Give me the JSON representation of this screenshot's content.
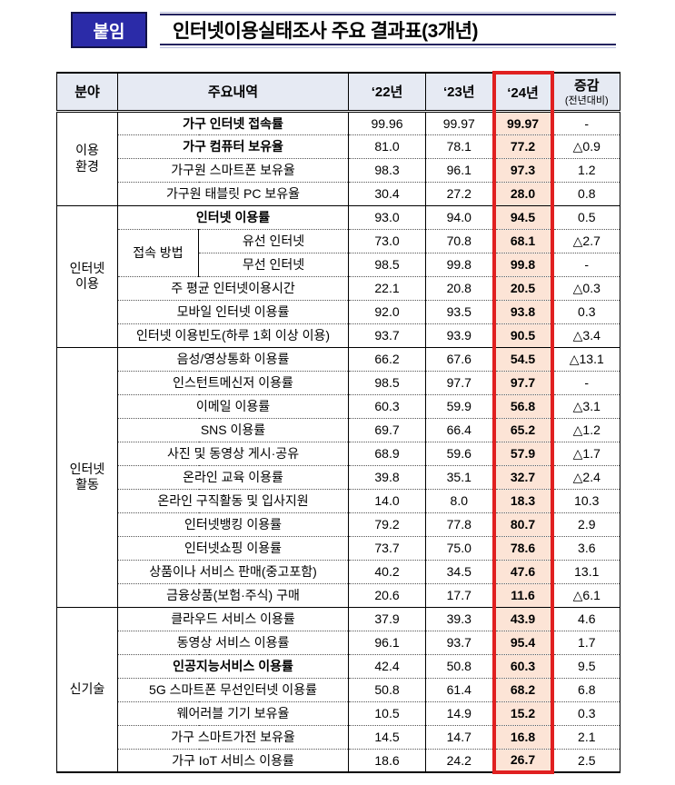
{
  "header": {
    "badge": "붙임",
    "title": "인터넷이용실태조사 주요 결과표(3개년)"
  },
  "table": {
    "columns": [
      "분야",
      "주요내역",
      "‘22년",
      "‘23년",
      "‘24년",
      "증감"
    ],
    "change_note": "(전년대비)",
    "accent_colors": {
      "highlight_border": "#e02020",
      "highlight_fill": "#fce4d6",
      "header_fill": "#e6eaf3",
      "badge_fill": "#2b2ba8"
    },
    "groups": [
      {
        "category": "이용\n환경",
        "rows": [
          {
            "label": "가구 인터넷 접속률",
            "bold": true,
            "v22": "99.96",
            "v23": "99.97",
            "v24": "99.97",
            "chg": "-"
          },
          {
            "label": "가구 컴퓨터 보유율",
            "bold": true,
            "v22": "81.0",
            "v23": "78.1",
            "v24": "77.2",
            "chg": "△0.9"
          },
          {
            "label": "가구원 스마트폰 보유율",
            "v22": "98.3",
            "v23": "96.1",
            "v24": "97.3",
            "chg": "1.2"
          },
          {
            "label": "가구원 태블릿 PC 보유율",
            "v22": "30.4",
            "v23": "27.2",
            "v24": "28.0",
            "chg": "0.8"
          }
        ]
      },
      {
        "category": "인터넷\n이용",
        "rows": [
          {
            "label": "인터넷 이용률",
            "bold": true,
            "v22": "93.0",
            "v23": "94.0",
            "v24": "94.5",
            "chg": "0.5"
          },
          {
            "label": "유선 인터넷",
            "subgroup": "접속 방법",
            "subrow": 0,
            "v22": "73.0",
            "v23": "70.8",
            "v24": "68.1",
            "chg": "△2.7"
          },
          {
            "label": "무선 인터넷",
            "subgroup": "접속 방법",
            "subrow": 1,
            "v22": "98.5",
            "v23": "99.8",
            "v24": "99.8",
            "chg": "-"
          },
          {
            "label": "주 평균 인터넷이용시간",
            "v22": "22.1",
            "v23": "20.8",
            "v24": "20.5",
            "chg": "△0.3"
          },
          {
            "label": "모바일 인터넷 이용률",
            "v22": "92.0",
            "v23": "93.5",
            "v24": "93.8",
            "chg": "0.3"
          },
          {
            "label": "인터넷 이용빈도(하루 1회 이상 이용)",
            "v22": "93.7",
            "v23": "93.9",
            "v24": "90.5",
            "chg": "△3.4"
          }
        ]
      },
      {
        "category": "인터넷\n활동",
        "rows": [
          {
            "label": "음성/영상통화 이용률",
            "v22": "66.2",
            "v23": "67.6",
            "v24": "54.5",
            "chg": "△13.1"
          },
          {
            "label": "인스턴트메신저 이용률",
            "v22": "98.5",
            "v23": "97.7",
            "v24": "97.7",
            "chg": "-"
          },
          {
            "label": "이메일 이용률",
            "v22": "60.3",
            "v23": "59.9",
            "v24": "56.8",
            "chg": "△3.1"
          },
          {
            "label": "SNS 이용률",
            "v22": "69.7",
            "v23": "66.4",
            "v24": "65.2",
            "chg": "△1.2"
          },
          {
            "label": "사진 및 동영상 게시·공유",
            "v22": "68.9",
            "v23": "59.6",
            "v24": "57.9",
            "chg": "△1.7"
          },
          {
            "label": "온라인 교육 이용률",
            "v22": "39.8",
            "v23": "35.1",
            "v24": "32.7",
            "chg": "△2.4"
          },
          {
            "label": "온라인 구직활동 및 입사지원",
            "v22": "14.0",
            "v23": "8.0",
            "v24": "18.3",
            "chg": "10.3"
          },
          {
            "label": "인터넷뱅킹 이용률",
            "v22": "79.2",
            "v23": "77.8",
            "v24": "80.7",
            "chg": "2.9"
          },
          {
            "label": "인터넷쇼핑 이용률",
            "v22": "73.7",
            "v23": "75.0",
            "v24": "78.6",
            "chg": "3.6"
          },
          {
            "label": "상품이나 서비스 판매(중고포함)",
            "v22": "40.2",
            "v23": "34.5",
            "v24": "47.6",
            "chg": "13.1"
          },
          {
            "label": "금융상품(보험·주식) 구매",
            "v22": "20.6",
            "v23": "17.7",
            "v24": "11.6",
            "chg": "△6.1"
          }
        ]
      },
      {
        "category": "신기술",
        "rows": [
          {
            "label": "클라우드 서비스 이용률",
            "v22": "37.9",
            "v23": "39.3",
            "v24": "43.9",
            "chg": "4.6"
          },
          {
            "label": "동영상 서비스 이용률",
            "v22": "96.1",
            "v23": "93.7",
            "v24": "95.4",
            "chg": "1.7"
          },
          {
            "label": "인공지능서비스 이용률",
            "bold": true,
            "v22": "42.4",
            "v23": "50.8",
            "v24": "60.3",
            "chg": "9.5"
          },
          {
            "label": "5G 스마트폰 무선인터넷 이용률",
            "v22": "50.8",
            "v23": "61.4",
            "v24": "68.2",
            "chg": "6.8"
          },
          {
            "label": "웨어러블 기기 보유율",
            "v22": "10.5",
            "v23": "14.9",
            "v24": "15.2",
            "chg": "0.3"
          },
          {
            "label": "가구 스마트가전 보유율",
            "v22": "14.5",
            "v23": "14.7",
            "v24": "16.8",
            "chg": "2.1"
          },
          {
            "label": "가구 IoT 서비스 이용률",
            "v22": "18.6",
            "v23": "24.2",
            "v24": "26.7",
            "chg": "2.5"
          }
        ]
      }
    ]
  }
}
